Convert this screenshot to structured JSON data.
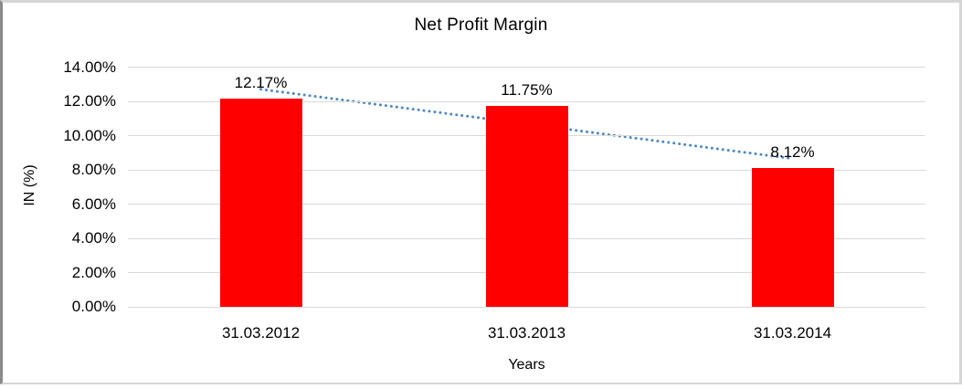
{
  "chart": {
    "title": "Net Profit Margin",
    "y_axis_title": "IN (%)",
    "x_axis_title": "Years"
  },
  "chart_data": {
    "type": "bar",
    "title": "Net Profit Margin",
    "categories": [
      "31.03.2012",
      "31.03.2013",
      "31.03.2014"
    ],
    "values": [
      12.17,
      11.75,
      8.12
    ],
    "data_labels": [
      "12.17%",
      "11.75%",
      "8.12%"
    ],
    "xlabel": "Years",
    "ylabel": "IN (%)",
    "ylim": [
      0,
      14
    ],
    "ytick_step": 2,
    "yticks": [
      "0.00%",
      "2.00%",
      "4.00%",
      "6.00%",
      "8.00%",
      "10.00%",
      "12.00%",
      "14.00%"
    ],
    "grid": true,
    "legend": "none",
    "bar_color": "#ff0000",
    "trendline": {
      "type": "linear",
      "style": "dotted",
      "color": "#4a87c6"
    }
  }
}
